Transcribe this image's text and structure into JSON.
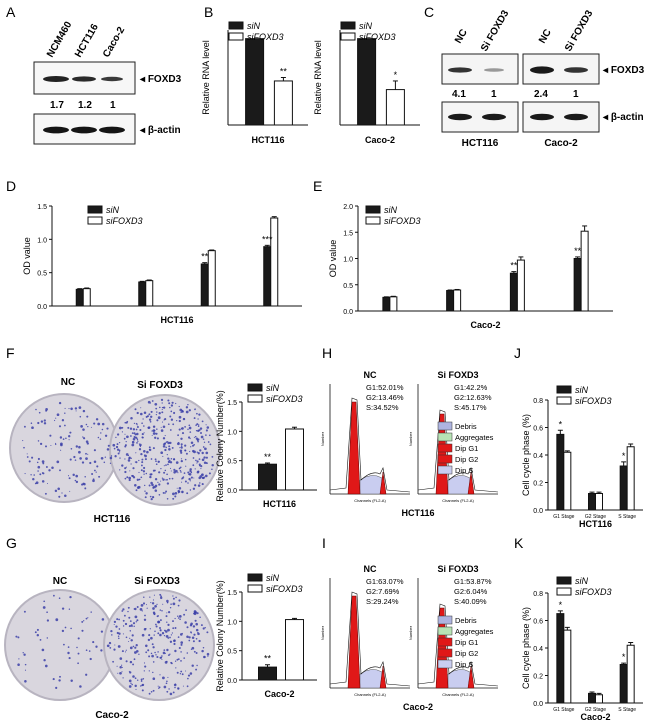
{
  "panel_letters": {
    "A": "A",
    "B": "B",
    "C": "C",
    "D": "D",
    "E": "E",
    "F": "F",
    "G": "G",
    "H": "H",
    "I": "I",
    "J": "J",
    "K": "K"
  },
  "legend": {
    "siN": "siN",
    "siFOXD3": "siFOXD3"
  },
  "colors": {
    "siN": "#1a1a1a",
    "siFOXD3": "#ffffff",
    "dish": "#d9d6de",
    "colony": "#3b3fa8",
    "peak_red": "#e01818",
    "debris": "#aeb4e0",
    "aggregates": "#b7e3b5"
  },
  "western": {
    "A": {
      "lanes": [
        "NCM460",
        "HCT116",
        "Caco-2"
      ],
      "bands": [
        "FOXD3",
        "β-actin"
      ],
      "quant": [
        "1.7",
        "1.2",
        "1"
      ]
    },
    "C": {
      "lanes": [
        "NC",
        "Si FOXD3"
      ],
      "bands": [
        "FOXD3",
        "β-actin"
      ],
      "blots": [
        {
          "cell": "HCT116",
          "quant": [
            "4.1",
            "1"
          ]
        },
        {
          "cell": "Caco-2",
          "quant": [
            "2.4",
            "1"
          ]
        }
      ]
    }
  },
  "flow": {
    "legend": [
      "Debris",
      "Aggregates",
      "Dip G1",
      "Dip G2",
      "Dip S"
    ],
    "xlabel": "Channels (FL2-A)",
    "ylabel": "Number",
    "H": {
      "cell": "HCT116",
      "plots": [
        {
          "title": "NC",
          "stats": [
            "G1:52.01%",
            "G2:13.46%",
            "S:34.52%"
          ]
        },
        {
          "title": "Si FOXD3",
          "stats": [
            "G1:42.2%",
            "G2:12.63%",
            "S:45.17%"
          ]
        }
      ]
    },
    "I": {
      "cell": "Caco-2",
      "plots": [
        {
          "title": "NC",
          "stats": [
            "G1:63.07%",
            "G2:7.69%",
            "S:29.24%"
          ]
        },
        {
          "title": "Si FOXD3",
          "stats": [
            "G1:53.87%",
            "G2:6.04%",
            "S:40.09%"
          ]
        }
      ]
    }
  },
  "colony_images": {
    "F": {
      "labels": [
        "NC",
        "Si FOXD3"
      ],
      "cell": "HCT116"
    },
    "G": {
      "labels": [
        "NC",
        "Si FOXD3"
      ],
      "cell": "Caco-2"
    }
  },
  "chart_data": [
    {
      "id": "B1",
      "type": "bar",
      "xlabel": "HCT116",
      "ylabel": "Relative RNA level",
      "categories": [
        ""
      ],
      "ylim": [
        0,
        1.1
      ],
      "series": [
        {
          "name": "siN",
          "values": [
            1.0
          ],
          "err": [
            0
          ]
        },
        {
          "name": "siFOXD3",
          "values": [
            0.51
          ],
          "err": [
            0.04
          ]
        }
      ],
      "annotations": [
        "**"
      ]
    },
    {
      "id": "B2",
      "type": "bar",
      "xlabel": "Caco-2",
      "ylabel": "Relative RNA level",
      "categories": [
        ""
      ],
      "ylim": [
        0,
        1.1
      ],
      "series": [
        {
          "name": "siN",
          "values": [
            1.0
          ],
          "err": [
            0
          ]
        },
        {
          "name": "siFOXD3",
          "values": [
            0.41
          ],
          "err": [
            0.1
          ]
        }
      ],
      "annotations": [
        "*"
      ]
    },
    {
      "id": "D",
      "type": "bar",
      "xlabel": "HCT116",
      "ylabel": "OD value",
      "categories": [
        "",
        "",
        "",
        ""
      ],
      "ylim": [
        0,
        1.5
      ],
      "yticks": [
        "0.0",
        "0.5",
        "1.0",
        "1.5"
      ],
      "series": [
        {
          "name": "siN",
          "values": [
            0.25,
            0.36,
            0.63,
            0.89
          ],
          "err": [
            0.01,
            0.01,
            0.02,
            0.02
          ]
        },
        {
          "name": "siFOXD3",
          "values": [
            0.26,
            0.38,
            0.83,
            1.32
          ],
          "err": [
            0.01,
            0.01,
            0.01,
            0.02
          ]
        }
      ],
      "annotations": [
        "",
        "",
        "**",
        "***"
      ]
    },
    {
      "id": "E",
      "type": "bar",
      "xlabel": "Caco-2",
      "ylabel": "OD value",
      "categories": [
        "",
        "",
        "",
        ""
      ],
      "ylim": [
        0,
        2.0
      ],
      "yticks": [
        "0.0",
        "0.5",
        "1.0",
        "1.5",
        "2.0"
      ],
      "series": [
        {
          "name": "siN",
          "values": [
            0.26,
            0.39,
            0.72,
            1.0
          ],
          "err": [
            0.01,
            0.01,
            0.03,
            0.03
          ]
        },
        {
          "name": "siFOXD3",
          "values": [
            0.27,
            0.4,
            0.97,
            1.52
          ],
          "err": [
            0.01,
            0.01,
            0.06,
            0.1
          ]
        }
      ],
      "annotations": [
        "",
        "",
        "**",
        "**"
      ]
    },
    {
      "id": "F",
      "type": "bar",
      "xlabel": "HCT116",
      "ylabel": "Relative Colony Number(%)",
      "categories": [
        ""
      ],
      "ylim": [
        0,
        1.5
      ],
      "yticks": [
        "0.0",
        "0.5",
        "1.0",
        "1.5"
      ],
      "series": [
        {
          "name": "siN",
          "values": [
            0.44
          ],
          "err": [
            0.02
          ]
        },
        {
          "name": "siFOXD3",
          "values": [
            1.04
          ],
          "err": [
            0.03
          ]
        }
      ],
      "annotations": [
        "**"
      ]
    },
    {
      "id": "G",
      "type": "bar",
      "xlabel": "Caco-2",
      "ylabel": "Relative Colony Number(%)",
      "categories": [
        ""
      ],
      "ylim": [
        0,
        1.5
      ],
      "yticks": [
        "0.0",
        "0.5",
        "1.0",
        "1.5"
      ],
      "series": [
        {
          "name": "siN",
          "values": [
            0.22
          ],
          "err": [
            0.04
          ]
        },
        {
          "name": "siFOXD3",
          "values": [
            1.03
          ],
          "err": [
            0.02
          ]
        }
      ],
      "annotations": [
        "**"
      ]
    },
    {
      "id": "J",
      "type": "bar",
      "xlabel": "HCT116",
      "ylabel": "Cell cycle phase (%)",
      "categories": [
        "G1 Stage",
        "G2 Stage",
        "S Stage"
      ],
      "ylim": [
        0,
        0.8
      ],
      "yticks": [
        "0.0",
        "0.2",
        "0.4",
        "0.6",
        "0.8"
      ],
      "series": [
        {
          "name": "siN",
          "values": [
            0.55,
            0.12,
            0.32
          ],
          "err": [
            0.03,
            0.01,
            0.03
          ]
        },
        {
          "name": "siFOXD3",
          "values": [
            0.42,
            0.12,
            0.46
          ],
          "err": [
            0.01,
            0.01,
            0.02
          ]
        }
      ],
      "annotations": [
        "*",
        "",
        "*"
      ]
    },
    {
      "id": "K",
      "type": "bar",
      "xlabel": "Caco-2",
      "ylabel": "Cell cycle phase (%)",
      "categories": [
        "G1 Stage",
        "G2 Stage",
        "S Stage"
      ],
      "ylim": [
        0,
        0.8
      ],
      "yticks": [
        "0.0",
        "0.2",
        "0.4",
        "0.6",
        "0.8"
      ],
      "series": [
        {
          "name": "siN",
          "values": [
            0.65,
            0.07,
            0.28
          ],
          "err": [
            0.02,
            0.01,
            0.01
          ]
        },
        {
          "name": "siFOXD3",
          "values": [
            0.53,
            0.06,
            0.42
          ],
          "err": [
            0.02,
            0.01,
            0.02
          ]
        }
      ],
      "annotations": [
        "*",
        "",
        "*"
      ]
    }
  ]
}
